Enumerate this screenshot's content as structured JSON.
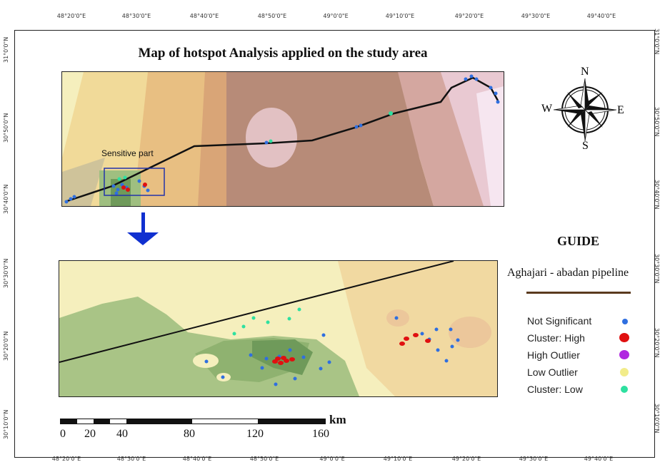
{
  "title": "Map of hotspot Analysis applied on the study area",
  "ticks": {
    "top": [
      "48°20'0\"E",
      "48°30'0\"E",
      "48°40'0\"E",
      "48°50'0\"E",
      "49°0'0\"E",
      "49°10'0\"E",
      "49°20'0\"E",
      "49°30'0\"E",
      "49°40'0\"E"
    ],
    "bottom": [
      "48°20'0\"E",
      "48°30'0\"E",
      "48°40'0\"E",
      "48°50'0\"E",
      "49°0'0\"E",
      "49°10'0\"E",
      "49°20'0\"E",
      "49°30'0\"E",
      "49°40'0\"E"
    ],
    "left": [
      "31°0'0\"N",
      "30°50'0\"N",
      "30°40'0\"N",
      "30°30'0\"N",
      "30°20'0\"N",
      "30°10'0\"N"
    ],
    "right": [
      "31°0'0\"N",
      "30°50'0\"N",
      "30°40'0\"N",
      "30°30'0\"N",
      "30°20'0\"N",
      "30°10'0\"N"
    ]
  },
  "inset": {
    "sensitive_label": "Sensitive part"
  },
  "compass": {
    "n": "N",
    "s": "S",
    "e": "E",
    "w": "W"
  },
  "guide": {
    "title": "GUIDE",
    "pipeline_label": "Aghajari - abadan pipeline",
    "pipeline_color": "#5a3a1e",
    "items": [
      {
        "label": "Not Significant",
        "color": "#2f6fe0"
      },
      {
        "label": "Cluster: High",
        "color": "#e01010"
      },
      {
        "label": "High Outlier",
        "color": "#b026e0"
      },
      {
        "label": "Low Outlier",
        "color": "#f2ec8a"
      },
      {
        "label": "Cluster: Low",
        "color": "#2ee0a0"
      }
    ]
  },
  "scale": {
    "unit": "km",
    "labels": [
      "0",
      "20",
      "40",
      "80",
      "120",
      "160"
    ]
  }
}
